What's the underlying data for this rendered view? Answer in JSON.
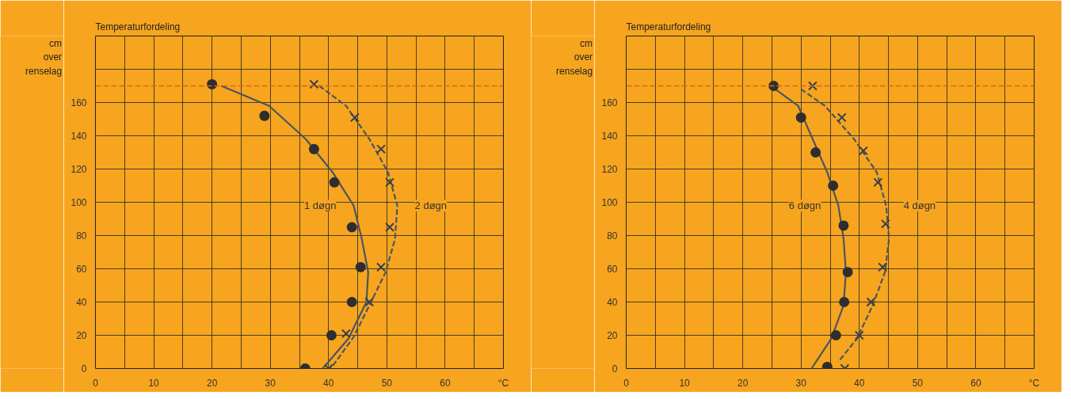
{
  "chart_data": [
    {
      "type": "scatter",
      "title": "Temperaturfordeling",
      "ylabel": "cm\nover\nrenselag",
      "xlim": [
        0,
        70
      ],
      "xticks": [
        0,
        {
          "value": 5,
          "label": null
        },
        10,
        {
          "value": 15,
          "label": null
        },
        20,
        {
          "value": 25,
          "label": null
        },
        30,
        {
          "value": 35,
          "label": null
        },
        40,
        {
          "value": 45,
          "label": null
        },
        50,
        {
          "value": 55,
          "label": null
        },
        60,
        {
          "value": 65,
          "label": null
        },
        {
          "value": 70,
          "label": "°C"
        }
      ],
      "ylim": [
        0,
        200
      ],
      "yticks": [
        0,
        20,
        40,
        60,
        80,
        100,
        120,
        140,
        160,
        {
          "value": 180,
          "label": null
        }
      ],
      "grid": true,
      "ref_lines": [
        {
          "axis": "y",
          "value": 170,
          "color": "#d9631c",
          "line_style": "dashed"
        }
      ],
      "series": [
        {
          "type": "line",
          "name": "1 døgn",
          "color": "#4b5560",
          "line_style": "solid",
          "x": [
            21.6,
            29.8,
            36.1,
            40.7,
            44.3,
            45.7,
            46.8,
            46.5,
            43.4,
            39
          ],
          "values": [
            170,
            158,
            138,
            118,
            98,
            78,
            58,
            40,
            18,
            0
          ]
        },
        {
          "color": "#2e2e2e",
          "marker": "circle",
          "x": [
            20,
            29,
            37.5,
            41,
            44,
            45.5,
            44,
            40.5,
            36
          ],
          "values": [
            171,
            152,
            132,
            112,
            85,
            61,
            40,
            20,
            0
          ]
        },
        {
          "type": "line",
          "name": "2 døgn",
          "color": "#4b5560",
          "line_style": "dashed",
          "x": [
            38.4,
            43,
            47,
            50.2,
            51.8,
            51.4,
            49.8,
            47,
            44.3,
            40.4
          ],
          "values": [
            170,
            158,
            138,
            118,
            98,
            78,
            58,
            38,
            19,
            0
          ]
        },
        {
          "color": "#3a3f47",
          "marker": "cross",
          "x": [
            37.5,
            44.5,
            49,
            50.5,
            50.5,
            49,
            47,
            43,
            40
          ],
          "values": [
            171,
            151,
            132,
            112,
            85,
            61,
            40,
            21,
            0
          ]
        }
      ]
    },
    {
      "type": "scatter",
      "title": "Temperaturfordeling",
      "ylabel": "cm\nover\nrenselag",
      "xlim": [
        0,
        70
      ],
      "xticks": [
        0,
        {
          "value": 5,
          "label": null
        },
        10,
        {
          "value": 15,
          "label": null
        },
        20,
        {
          "value": 25,
          "label": null
        },
        30,
        {
          "value": 35,
          "label": null
        },
        40,
        {
          "value": 45,
          "label": null
        },
        50,
        {
          "value": 55,
          "label": null
        },
        60,
        {
          "value": 65,
          "label": null
        },
        {
          "value": 70,
          "label": "°C"
        }
      ],
      "ylim": [
        0,
        200
      ],
      "yticks": [
        0,
        20,
        40,
        60,
        80,
        100,
        120,
        140,
        160,
        {
          "value": 180,
          "label": null
        }
      ],
      "grid": true,
      "ref_lines": [
        {
          "axis": "y",
          "value": 170,
          "color": "#d9631c",
          "line_style": "dashed"
        }
      ],
      "series": [
        {
          "type": "line",
          "name": "6 døgn",
          "color": "#4b5560",
          "line_style": "solid",
          "x": [
            25.2,
            29.5,
            32,
            34.5,
            36.4,
            37.3,
            37.7,
            37.3,
            35.2,
            31.8
          ],
          "values": [
            169,
            158,
            138,
            118,
            98,
            78,
            58,
            38,
            18,
            0
          ]
        },
        {
          "color": "#2e2e2e",
          "marker": "circle",
          "x": [
            25.3,
            30,
            32.5,
            35.5,
            37.3,
            38,
            37.4,
            36,
            34.5
          ],
          "values": [
            170,
            151,
            130,
            110,
            86,
            58,
            40,
            20,
            1
          ]
        },
        {
          "type": "line",
          "name": "4 døgn",
          "color": "#4b5560",
          "line_style": "dashed",
          "x": [
            30,
            34.1,
            39.1,
            43,
            44.6,
            45.1,
            44.4,
            42.3,
            39.6,
            36.4
          ],
          "values": [
            168,
            158,
            138,
            118,
            98,
            78,
            58,
            38,
            18,
            4
          ]
        },
        {
          "color": "#3a3f47",
          "marker": "cross",
          "x": [
            32,
            37,
            40.7,
            43.2,
            44.5,
            44,
            42,
            40,
            37.5
          ],
          "values": [
            170,
            151,
            131,
            112,
            87,
            61,
            40,
            20,
            0
          ]
        }
      ]
    }
  ]
}
